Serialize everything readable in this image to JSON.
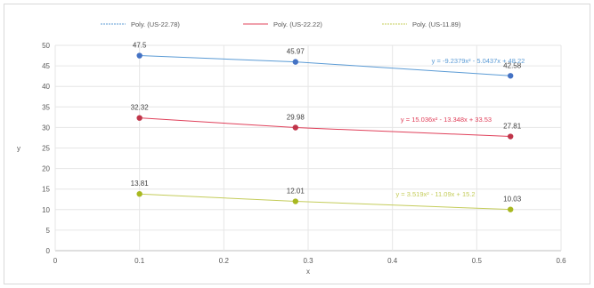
{
  "chart_data": {
    "type": "line",
    "title": "",
    "xlabel": "x",
    "ylabel": "y",
    "xlim": [
      0,
      0.6
    ],
    "ylim": [
      0,
      50
    ],
    "xticks": [
      "0",
      "0.1",
      "0.2",
      "0.3",
      "0.4",
      "0.5",
      "0.6"
    ],
    "yticks": [
      "0",
      "5",
      "10",
      "15",
      "20",
      "25",
      "30",
      "35",
      "40",
      "45",
      "50"
    ],
    "grid": true,
    "legend_position": "top",
    "series": [
      {
        "name": "Poly. (US-22.78)",
        "color": "#4472c4",
        "trend_color": "#5b9bd5",
        "points": [
          {
            "x": 0.1,
            "y": 47.5,
            "label": "47.5"
          },
          {
            "x": 0.285,
            "y": 45.97,
            "label": "45.97"
          },
          {
            "x": 0.54,
            "y": 42.58,
            "label": "42.58"
          }
        ],
        "equation": "y = -9.2379x² - 5.0437x + 48.22"
      },
      {
        "name": "Poly. (US-22.22)",
        "color": "#c0354a",
        "trend_color": "#e0405a",
        "points": [
          {
            "x": 0.1,
            "y": 32.32,
            "label": "32.32"
          },
          {
            "x": 0.285,
            "y": 29.98,
            "label": "29.98"
          },
          {
            "x": 0.54,
            "y": 27.81,
            "label": "27.81"
          }
        ],
        "equation": "y = 15.036x² - 13.348x + 33.53"
      },
      {
        "name": "Poly. (US-11.89)",
        "color": "#a8b820",
        "trend_color": "#c4cc5a",
        "points": [
          {
            "x": 0.1,
            "y": 13.81,
            "label": "13.81"
          },
          {
            "x": 0.285,
            "y": 12.01,
            "label": "12.01"
          },
          {
            "x": 0.54,
            "y": 10.03,
            "label": "10.03"
          }
        ],
        "equation": "y = 3.519x² - 11.09x + 15.2"
      }
    ]
  }
}
